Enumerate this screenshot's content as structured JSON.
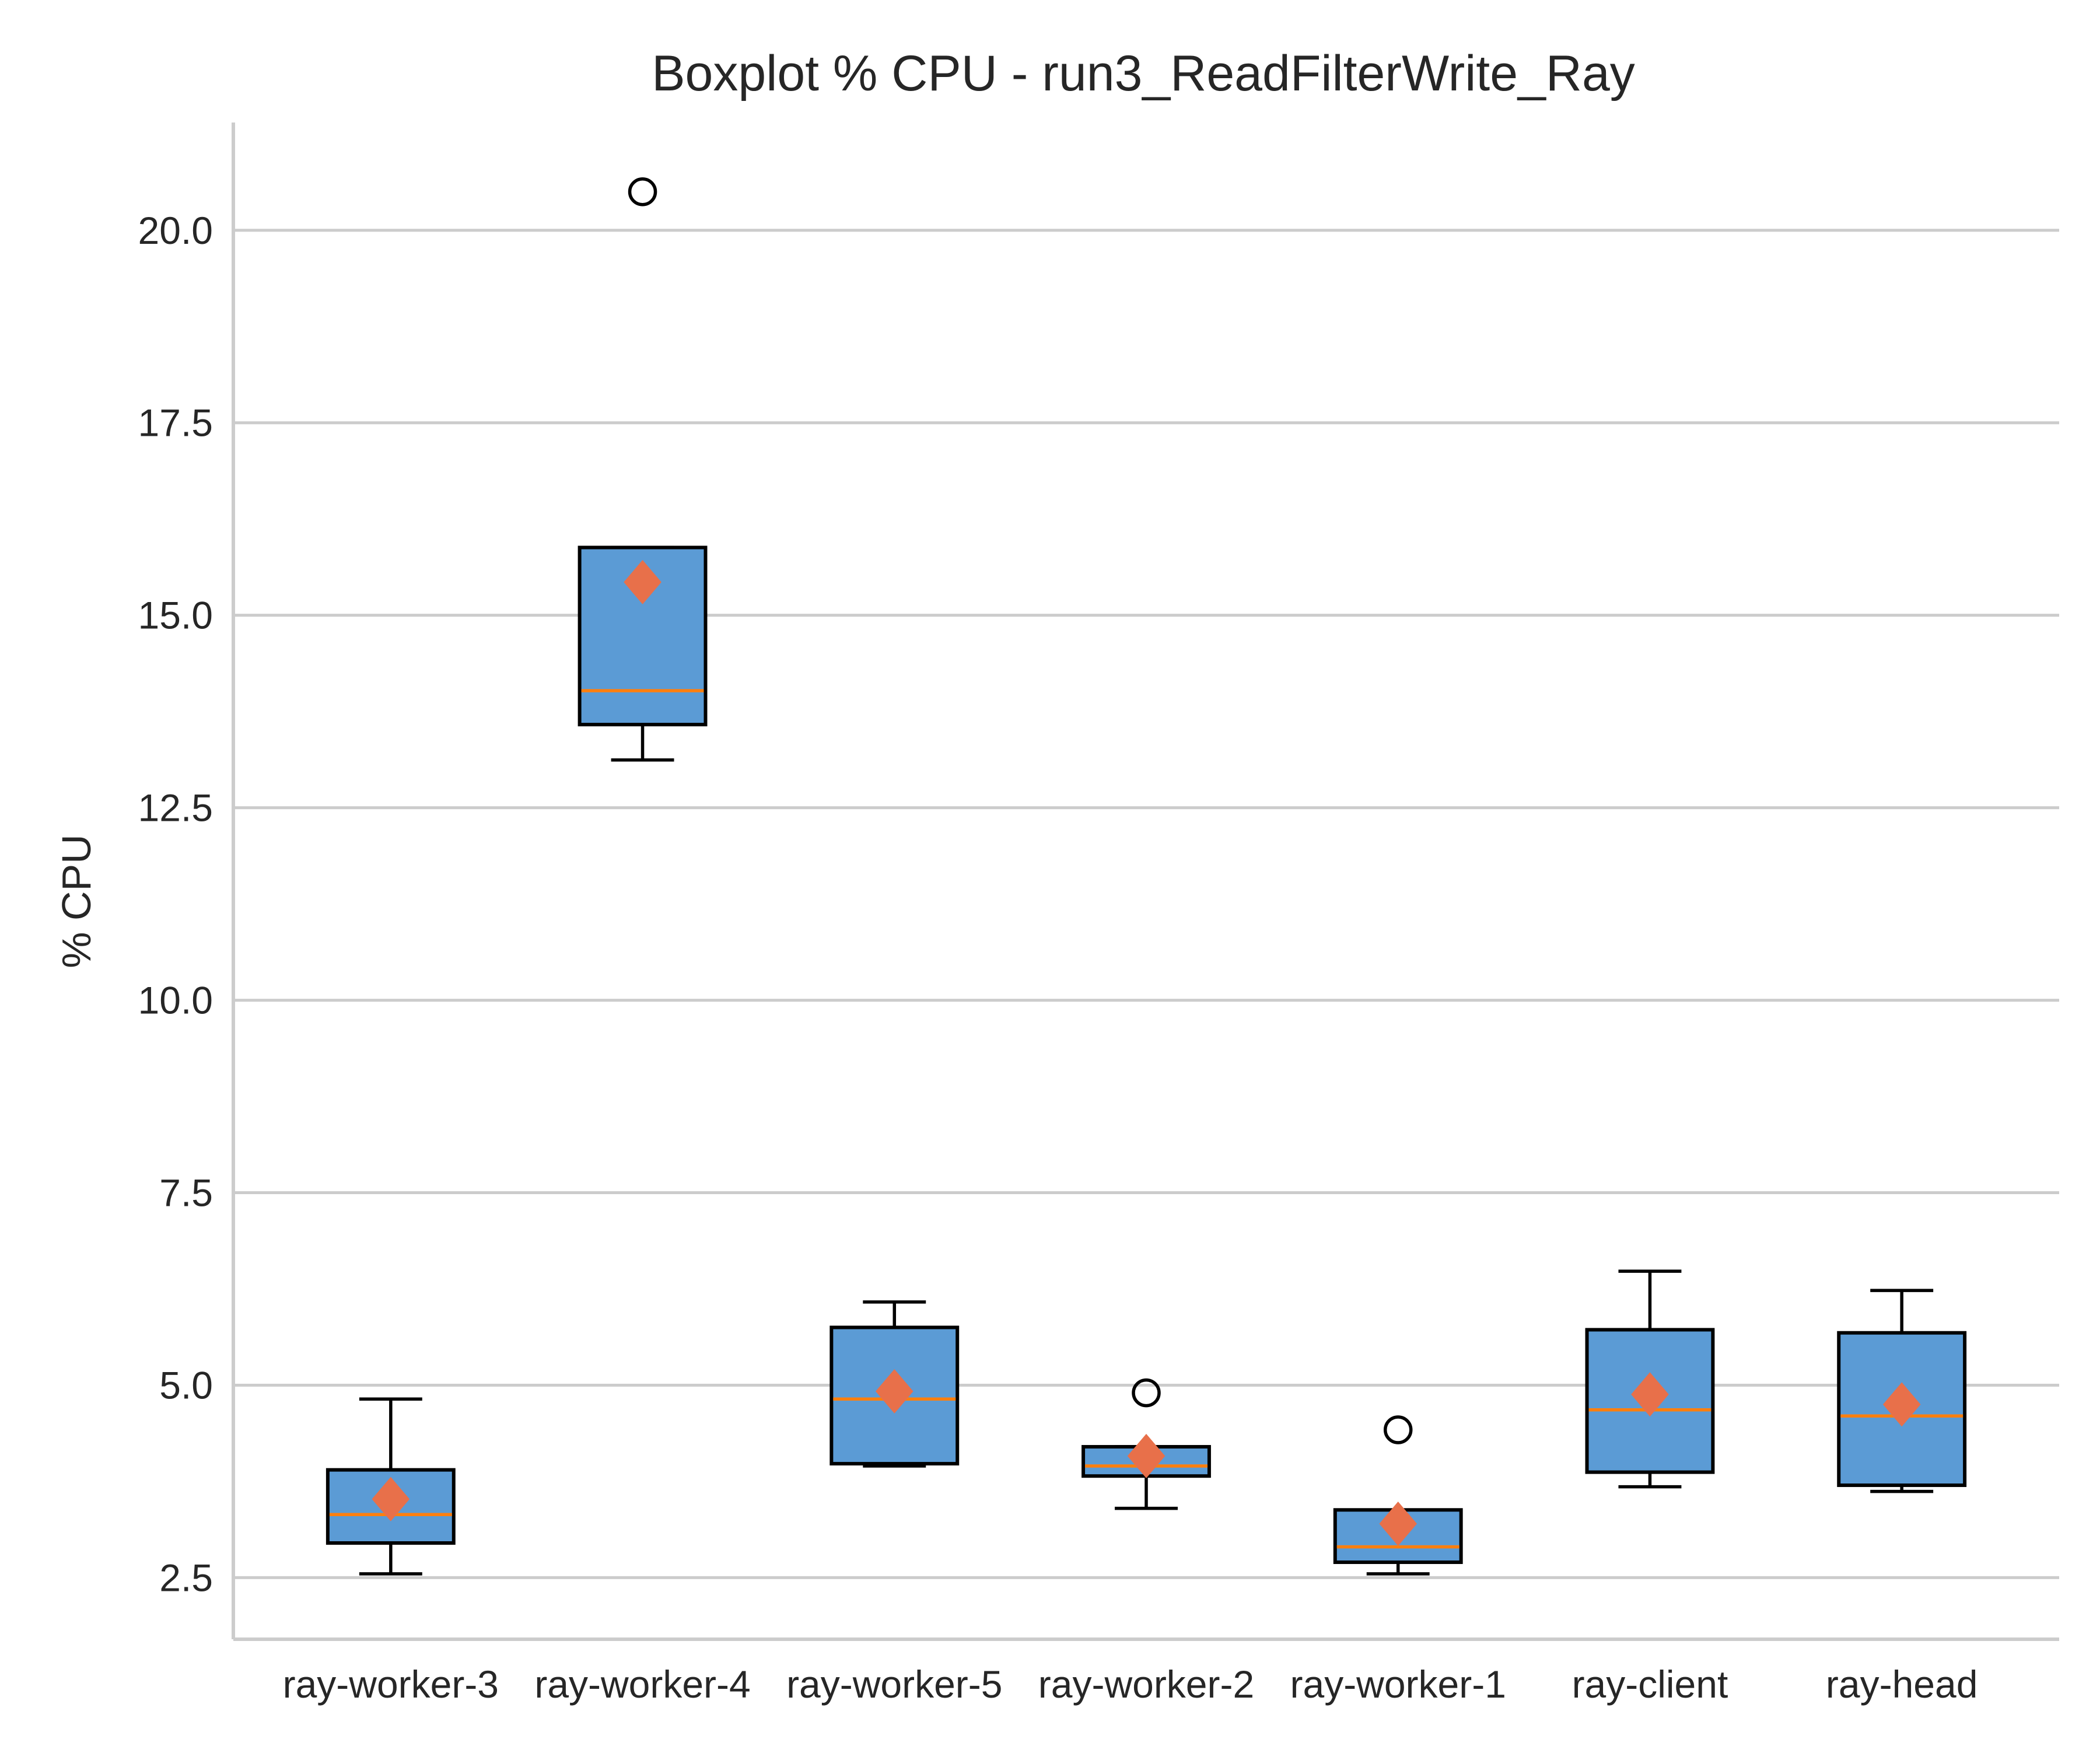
{
  "chart_data": {
    "type": "boxplot",
    "title": "Boxplot % CPU - run3_ReadFilterWrite_Ray",
    "xlabel": "",
    "ylabel": "% CPU",
    "ylim": [
      1.7,
      21.4
    ],
    "yticks": [
      2.5,
      5.0,
      7.5,
      10.0,
      12.5,
      15.0,
      17.5,
      20.0
    ],
    "ytick_labels": [
      "2.5",
      "5.0",
      "7.5",
      "10.0",
      "12.5",
      "15.0",
      "17.5",
      "20.0"
    ],
    "grid": "horizontal",
    "categories": [
      "ray-worker-3",
      "ray-worker-4",
      "ray-worker-5",
      "ray-worker-2",
      "ray-worker-1",
      "ray-client",
      "ray-head"
    ],
    "boxes": [
      {
        "whislo": 2.55,
        "q1": 2.95,
        "med": 3.32,
        "q3": 3.9,
        "whishi": 4.82,
        "mean": 3.52,
        "fliers": []
      },
      {
        "whislo": 13.12,
        "q1": 13.58,
        "med": 14.02,
        "q3": 15.88,
        "whishi": 15.88,
        "mean": 15.43,
        "fliers": [
          20.5
        ]
      },
      {
        "whislo": 3.95,
        "q1": 3.98,
        "med": 4.82,
        "q3": 5.75,
        "whishi": 6.08,
        "mean": 4.92,
        "fliers": []
      },
      {
        "whislo": 3.4,
        "q1": 3.82,
        "med": 3.95,
        "q3": 4.2,
        "whishi": 4.2,
        "mean": 4.08,
        "fliers": [
          4.9
        ]
      },
      {
        "whislo": 2.55,
        "q1": 2.7,
        "med": 2.9,
        "q3": 3.38,
        "whishi": 3.38,
        "mean": 3.2,
        "fliers": [
          4.42
        ]
      },
      {
        "whislo": 3.68,
        "q1": 3.87,
        "med": 4.68,
        "q3": 5.72,
        "whishi": 6.48,
        "mean": 4.88,
        "fliers": []
      },
      {
        "whislo": 3.62,
        "q1": 3.7,
        "med": 4.6,
        "q3": 5.68,
        "whishi": 6.23,
        "mean": 4.75,
        "fliers": []
      }
    ],
    "colors": {
      "box_fill": "#5b9bd5",
      "box_edge": "#000000",
      "median": "#ff7f0e",
      "mean_marker": "#e8704a",
      "grid": "#cccccc",
      "spine": "#cccccc",
      "text": "#262626"
    }
  }
}
